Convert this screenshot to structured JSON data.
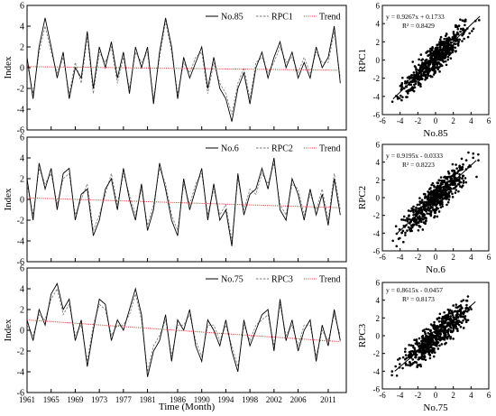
{
  "figure": {
    "xlabel_time": "Time (Month)",
    "ylabel_index": "Index",
    "time_ticks": [
      "1961",
      "1965",
      "1969",
      "1973",
      "1977",
      "1981",
      "1986",
      "1990",
      "1994",
      "1998",
      "2002",
      "2006",
      "2011"
    ]
  },
  "chart_data": [
    {
      "type": "line",
      "ylabel": "Index",
      "xlabel": "",
      "ylim": [
        -6,
        6
      ],
      "yticks": [
        -6,
        -4,
        -2,
        0,
        2,
        4,
        6
      ],
      "xrange": [
        1961,
        2014
      ],
      "legend": [
        "No.85",
        "RPC1",
        "Trend"
      ],
      "legend_placement": "top-right",
      "series": [
        {
          "name": "No.85",
          "style": "solid",
          "color": "#000000",
          "x": [
            1961,
            1962,
            1963,
            1964,
            1965,
            1966,
            1967,
            1968,
            1969,
            1970,
            1971,
            1972,
            1973,
            1974,
            1975,
            1976,
            1977,
            1978,
            1979,
            1980,
            1981,
            1982,
            1983,
            1984,
            1985,
            1986,
            1987,
            1988,
            1989,
            1990,
            1991,
            1992,
            1993,
            1994,
            1995,
            1996,
            1997,
            1998,
            1999,
            2000,
            2001,
            2002,
            2003,
            2004,
            2005,
            2006,
            2007,
            2008,
            2009,
            2010,
            2011,
            2012,
            2013
          ],
          "values": [
            1,
            -3,
            2,
            4.8,
            2,
            -1,
            1.5,
            -3,
            0,
            -1,
            3.5,
            -2,
            2,
            0,
            2.5,
            -1,
            1.5,
            -2.5,
            2,
            0,
            2,
            -3.5,
            1.5,
            4.8,
            2,
            -3,
            1,
            -1,
            0.5,
            2,
            -2,
            1,
            -2,
            -3,
            -5.2,
            -2,
            -0.5,
            -3.5,
            0,
            1.5,
            -1,
            1,
            2.5,
            0,
            1.5,
            -1,
            0.5,
            -1,
            2,
            0,
            1,
            4,
            -1.5
          ]
        },
        {
          "name": "RPC1",
          "style": "dashed",
          "color": "#777777",
          "x": [
            1961,
            1962,
            1963,
            1964,
            1965,
            1966,
            1967,
            1968,
            1969,
            1970,
            1971,
            1972,
            1973,
            1974,
            1975,
            1976,
            1977,
            1978,
            1979,
            1980,
            1981,
            1982,
            1983,
            1984,
            1985,
            1986,
            1987,
            1988,
            1989,
            1990,
            1991,
            1992,
            1993,
            1994,
            1995,
            1996,
            1997,
            1998,
            1999,
            2000,
            2001,
            2002,
            2003,
            2004,
            2005,
            2006,
            2007,
            2008,
            2009,
            2010,
            2011,
            2012,
            2013
          ],
          "values": [
            0.5,
            -2.5,
            1.5,
            4,
            1.5,
            -0.5,
            1,
            -2.5,
            0.5,
            -1.5,
            3,
            -2.5,
            1.5,
            0.5,
            2,
            -1.5,
            1,
            -2,
            1.5,
            0.5,
            1.5,
            -3,
            1,
            4.5,
            1.5,
            -2.5,
            0.5,
            -0.5,
            1,
            1.5,
            -2.5,
            0.5,
            -1.5,
            -2.5,
            -4.5,
            -1.5,
            0,
            -3,
            0.5,
            1,
            -0.5,
            0.5,
            2,
            0.5,
            1,
            -0.5,
            1,
            -0.5,
            1.5,
            0.5,
            0.5,
            3.5,
            -1
          ]
        },
        {
          "name": "Trend",
          "style": "dotted",
          "color": "#e8231e",
          "x": [
            1961,
            2013
          ],
          "values": [
            0.1,
            -0.25
          ]
        }
      ]
    },
    {
      "type": "line",
      "ylabel": "Index",
      "xlabel": "",
      "ylim": [
        -6,
        6
      ],
      "yticks": [
        -6,
        -4,
        -2,
        0,
        2,
        4,
        6
      ],
      "xrange": [
        1961,
        2014
      ],
      "legend": [
        "No.6",
        "RPC2",
        "Trend"
      ],
      "legend_placement": "top-right",
      "series": [
        {
          "name": "No.6",
          "style": "solid",
          "color": "#000000",
          "x": [
            1961,
            1962,
            1963,
            1964,
            1965,
            1966,
            1967,
            1968,
            1969,
            1970,
            1971,
            1972,
            1973,
            1974,
            1975,
            1976,
            1977,
            1978,
            1979,
            1980,
            1981,
            1982,
            1983,
            1984,
            1985,
            1986,
            1987,
            1988,
            1989,
            1990,
            1991,
            1992,
            1993,
            1994,
            1995,
            1996,
            1997,
            1998,
            1999,
            2000,
            2001,
            2002,
            2003,
            2004,
            2005,
            2006,
            2007,
            2008,
            2009,
            2010,
            2011,
            2012,
            2013
          ],
          "values": [
            2,
            -2,
            3.5,
            1,
            3,
            -1,
            2.5,
            3,
            -2,
            0.5,
            1,
            -3.5,
            -2,
            1,
            2,
            -1,
            3,
            0,
            -2,
            1.5,
            -3,
            -1,
            3.5,
            1,
            -2,
            -3.5,
            2,
            -1,
            1,
            3,
            -2,
            1.5,
            -2,
            -1,
            -4.5,
            2.5,
            -1.5,
            0.5,
            1,
            3,
            1,
            4,
            -1,
            -2,
            2,
            0.5,
            -2,
            1,
            -1.5,
            0.5,
            -2.5,
            2,
            -1.5
          ]
        },
        {
          "name": "RPC2",
          "style": "dashed",
          "color": "#777777",
          "x": [
            1961,
            1962,
            1963,
            1964,
            1965,
            1966,
            1967,
            1968,
            1969,
            1970,
            1971,
            1972,
            1973,
            1974,
            1975,
            1976,
            1977,
            1978,
            1979,
            1980,
            1981,
            1982,
            1983,
            1984,
            1985,
            1986,
            1987,
            1988,
            1989,
            1990,
            1991,
            1992,
            1993,
            1994,
            1995,
            1996,
            1997,
            1998,
            1999,
            2000,
            2001,
            2002,
            2003,
            2004,
            2005,
            2006,
            2007,
            2008,
            2009,
            2010,
            2011,
            2012,
            2013
          ],
          "values": [
            1.5,
            -1.5,
            3,
            1.5,
            2.5,
            -0.5,
            2,
            2.5,
            -1.5,
            0,
            1.5,
            -3,
            -1.5,
            0.5,
            2.5,
            -0.5,
            2.5,
            0.5,
            -1.5,
            1,
            -2.5,
            -0.5,
            3,
            1.5,
            -1.5,
            -3,
            1.5,
            -0.5,
            1.5,
            2.5,
            -1.5,
            1,
            -1.5,
            -0.5,
            -4,
            2,
            -1,
            1,
            0.5,
            2.5,
            1.5,
            3.5,
            -0.5,
            -1.5,
            1.5,
            1,
            -1.5,
            0.5,
            -1,
            1,
            -2,
            2.5,
            -1
          ]
        },
        {
          "name": "Trend",
          "style": "dotted",
          "color": "#e8231e",
          "x": [
            1961,
            2013
          ],
          "values": [
            0.15,
            -0.8
          ]
        }
      ]
    },
    {
      "type": "line",
      "ylabel": "Index",
      "xlabel": "Time (Month)",
      "ylim": [
        -6,
        6
      ],
      "yticks": [
        -6,
        -4,
        -2,
        0,
        2,
        4,
        6
      ],
      "xrange": [
        1961,
        2014
      ],
      "xticks": [
        "1961",
        "1965",
        "1969",
        "1973",
        "1977",
        "1981",
        "1986",
        "1990",
        "1994",
        "1998",
        "2002",
        "2006",
        "2011"
      ],
      "legend": [
        "No.75",
        "RPC3",
        "Trend"
      ],
      "legend_placement": "top-right",
      "series": [
        {
          "name": "No.75",
          "style": "solid",
          "color": "#000000",
          "x": [
            1961,
            1962,
            1963,
            1964,
            1965,
            1966,
            1967,
            1968,
            1969,
            1970,
            1971,
            1972,
            1973,
            1974,
            1975,
            1976,
            1977,
            1978,
            1979,
            1980,
            1981,
            1982,
            1983,
            1984,
            1985,
            1986,
            1987,
            1988,
            1989,
            1990,
            1991,
            1992,
            1993,
            1994,
            1995,
            1996,
            1997,
            1998,
            1999,
            2000,
            2001,
            2002,
            2003,
            2004,
            2005,
            2006,
            2007,
            2008,
            2009,
            2010,
            2011,
            2012,
            2013
          ],
          "values": [
            1,
            -1,
            2,
            0.5,
            3.5,
            4.5,
            2,
            3,
            -1,
            1,
            -3.5,
            0,
            3,
            2.5,
            -1,
            1,
            0,
            2,
            4,
            1.5,
            -4.5,
            -2,
            -1,
            1.5,
            -3,
            1,
            0,
            2,
            -1.5,
            -3,
            1,
            0,
            -1.5,
            1,
            -2,
            -4,
            1,
            -1.5,
            0,
            1.5,
            2,
            -2,
            3,
            -1,
            1,
            -2,
            0,
            1,
            -3,
            0.5,
            -1.5,
            2,
            -1
          ]
        },
        {
          "name": "RPC3",
          "style": "dashed",
          "color": "#777777",
          "x": [
            1961,
            1962,
            1963,
            1964,
            1965,
            1966,
            1967,
            1968,
            1969,
            1970,
            1971,
            1972,
            1973,
            1974,
            1975,
            1976,
            1977,
            1978,
            1979,
            1980,
            1981,
            1982,
            1983,
            1984,
            1985,
            1986,
            1987,
            1988,
            1989,
            1990,
            1991,
            1992,
            1993,
            1994,
            1995,
            1996,
            1997,
            1998,
            1999,
            2000,
            2001,
            2002,
            2003,
            2004,
            2005,
            2006,
            2007,
            2008,
            2009,
            2010,
            2011,
            2012,
            2013
          ],
          "values": [
            0.5,
            -0.5,
            1.5,
            1,
            3,
            4,
            1.5,
            2.5,
            -0.5,
            0.5,
            -3,
            0.5,
            2.5,
            2,
            -0.5,
            0.5,
            0.5,
            1.5,
            3.5,
            1,
            -4,
            -1.5,
            -0.5,
            1,
            -2.5,
            0.5,
            0.5,
            1.5,
            -1,
            -2.5,
            0.5,
            0.5,
            -1,
            0.5,
            -1.5,
            -3.5,
            0.5,
            -1,
            0.5,
            1,
            1.5,
            -1.5,
            2.5,
            -0.5,
            0.5,
            -1.5,
            0.5,
            0.5,
            -2.5,
            0,
            -1,
            1.5,
            -0.5
          ]
        },
        {
          "name": "Trend",
          "style": "dotted",
          "color": "#e8231e",
          "x": [
            1961,
            2013
          ],
          "values": [
            1.0,
            -1.1
          ]
        }
      ]
    },
    {
      "type": "scatter",
      "xlabel": "No.85",
      "ylabel": "RPC1",
      "xlim": [
        -6,
        6
      ],
      "ylim": [
        -6,
        6
      ],
      "ticks": [
        -6,
        -4,
        -2,
        0,
        2,
        4,
        6
      ],
      "equation": "y = 0.9267x + 0.1733",
      "r2": "R² = 0.8429",
      "slope": 0.9267,
      "intercept": 0.1733,
      "spread": 0.75,
      "n_points": 600,
      "fit_range": [
        -4.8,
        5.0
      ]
    },
    {
      "type": "scatter",
      "xlabel": "No.6",
      "ylabel": "RPC2",
      "xlim": [
        -6,
        6
      ],
      "ylim": [
        -6,
        6
      ],
      "ticks": [
        -6,
        -4,
        -2,
        0,
        2,
        4,
        6
      ],
      "equation": "y = 0.9195x - 0.0333",
      "r2": "R² = 0.8223",
      "slope": 0.9195,
      "intercept": -0.0333,
      "spread": 0.8,
      "n_points": 600,
      "fit_range": [
        -4.5,
        4.6
      ]
    },
    {
      "type": "scatter",
      "xlabel": "No.75",
      "ylabel": "RPC3",
      "xlim": [
        -6,
        6
      ],
      "ylim": [
        -6,
        6
      ],
      "ticks": [
        -6,
        -4,
        -2,
        0,
        2,
        4,
        6
      ],
      "equation": "y = 0.8615x - 0.0457",
      "r2": "R² = 0.8173",
      "slope": 0.8615,
      "intercept": -0.0457,
      "spread": 0.8,
      "n_points": 600,
      "fit_range": [
        -4.6,
        4.5
      ]
    }
  ]
}
